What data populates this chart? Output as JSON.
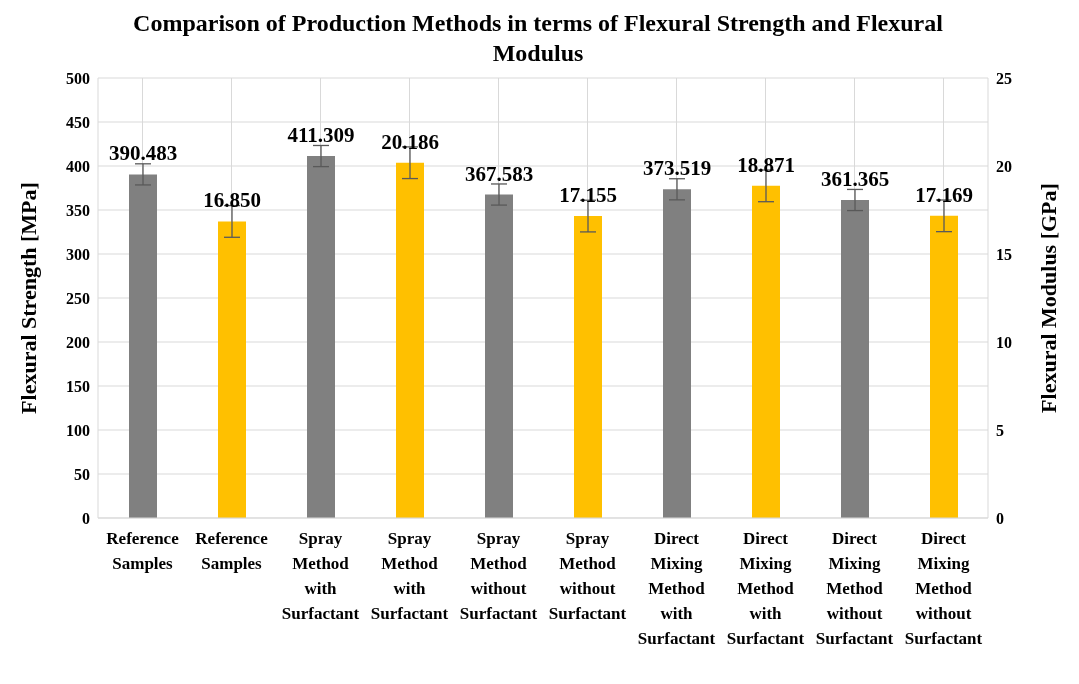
{
  "chart_data": {
    "type": "bar",
    "title": "Comparison of Production Methods in terms of Flexural Strength and Flexural Modulus",
    "categories": [
      "Reference Samples",
      "Reference Samples",
      "Spray Method with Surfactant",
      "Spray Method with Surfactant",
      "Spray Method without Surfactant",
      "Spray Method without Surfactant",
      "Direct Mixing Method with Surfactant",
      "Direct Mixing Method with Surfactant",
      "Direct Mixing Method without Surfactant",
      "Direct Mixing Method without Surfactant"
    ],
    "series": [
      {
        "color": "#808080",
        "values": [
          390.483,
          null,
          411.309,
          null,
          367.583,
          null,
          373.519,
          null,
          361.365,
          null
        ],
        "errors": [
          12,
          null,
          12,
          null,
          12,
          null,
          12,
          null,
          12,
          null
        ],
        "value_labels": [
          "390.483",
          null,
          "411.309",
          null,
          "367.583",
          null,
          "373.519",
          null,
          "361.365",
          null
        ]
      },
      {
        "color": "#ffc000",
        "axis": "y2",
        "values": [
          null,
          16.85,
          null,
          20.186,
          null,
          17.155,
          null,
          18.871,
          null,
          17.169
        ],
        "errors": [
          null,
          0.9,
          null,
          0.9,
          null,
          0.9,
          null,
          0.9,
          null,
          0.9
        ],
        "value_labels": [
          null,
          "16.850",
          null,
          "20.186",
          null,
          "17.155",
          null,
          "18.871",
          null,
          "17.169"
        ]
      }
    ],
    "ylabel": "Flexural Strength [MPa]",
    "y2label": "Flexural Modulus [GPa]",
    "ylim": [
      0,
      500
    ],
    "yticks": [
      0,
      50,
      100,
      150,
      200,
      250,
      300,
      350,
      400,
      450,
      500
    ],
    "y2lim": [
      0,
      25
    ],
    "y2ticks": [
      0,
      5,
      10,
      15,
      20,
      25
    ],
    "grid": true
  }
}
